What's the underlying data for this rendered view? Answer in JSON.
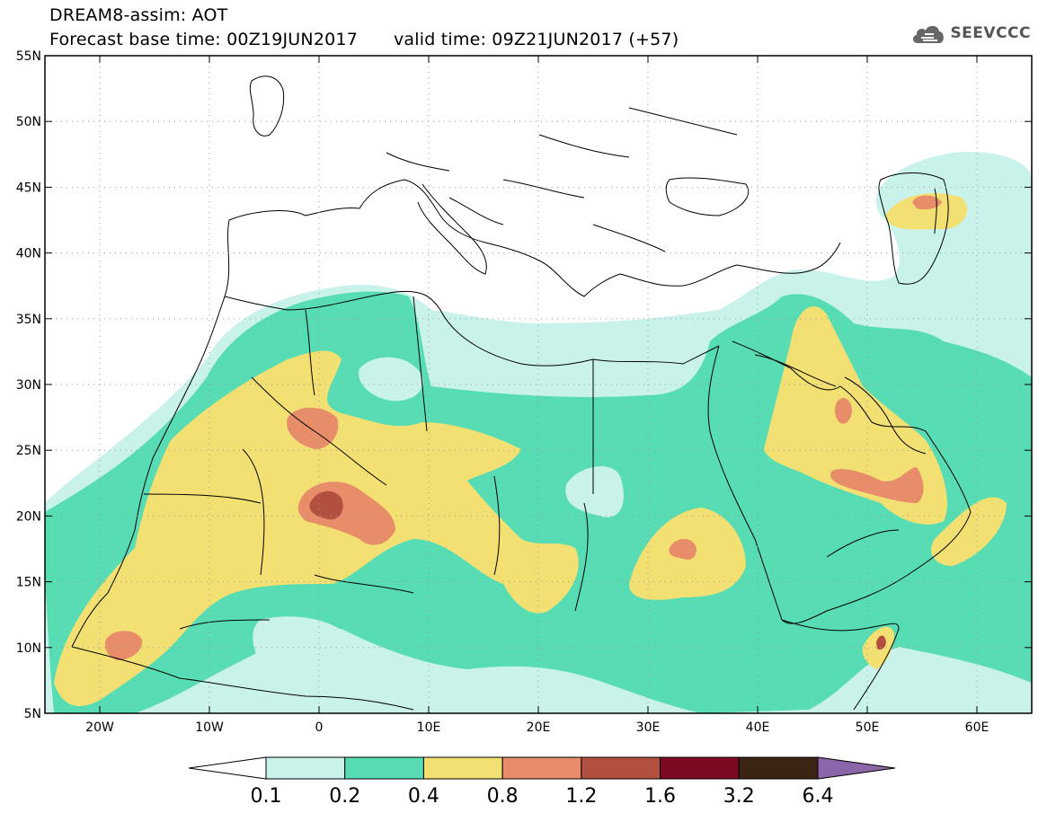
{
  "header": {
    "model": "DREAM8-assim: AOT",
    "base_time": "Forecast base time: 00Z19JUN2017",
    "valid_time": "valid time: 09Z21JUN2017 (+57)",
    "logo_text": "SEEVCCC",
    "logo_icon": "cloud-icon"
  },
  "map": {
    "lat_labels": [
      "55N",
      "50N",
      "45N",
      "40N",
      "35N",
      "30N",
      "25N",
      "20N",
      "15N",
      "10N",
      "5N"
    ],
    "lon_labels": [
      "20W",
      "10W",
      "0",
      "10E",
      "20E",
      "30E",
      "40E",
      "50E",
      "60E"
    ]
  },
  "legend": {
    "labels": [
      "0.1",
      "0.2",
      "0.4",
      "0.8",
      "1.2",
      "1.6",
      "3.2",
      "6.4"
    ],
    "colors": [
      "#ffffff",
      "#c9f2ea",
      "#58dcb4",
      "#f3e072",
      "#e78d6a",
      "#b25040",
      "#7d0a20",
      "#3c2415",
      "#8b67a9"
    ],
    "thresholds": [
      0.1,
      0.2,
      0.4,
      0.8,
      1.2,
      1.6,
      3.2,
      6.4
    ]
  }
}
